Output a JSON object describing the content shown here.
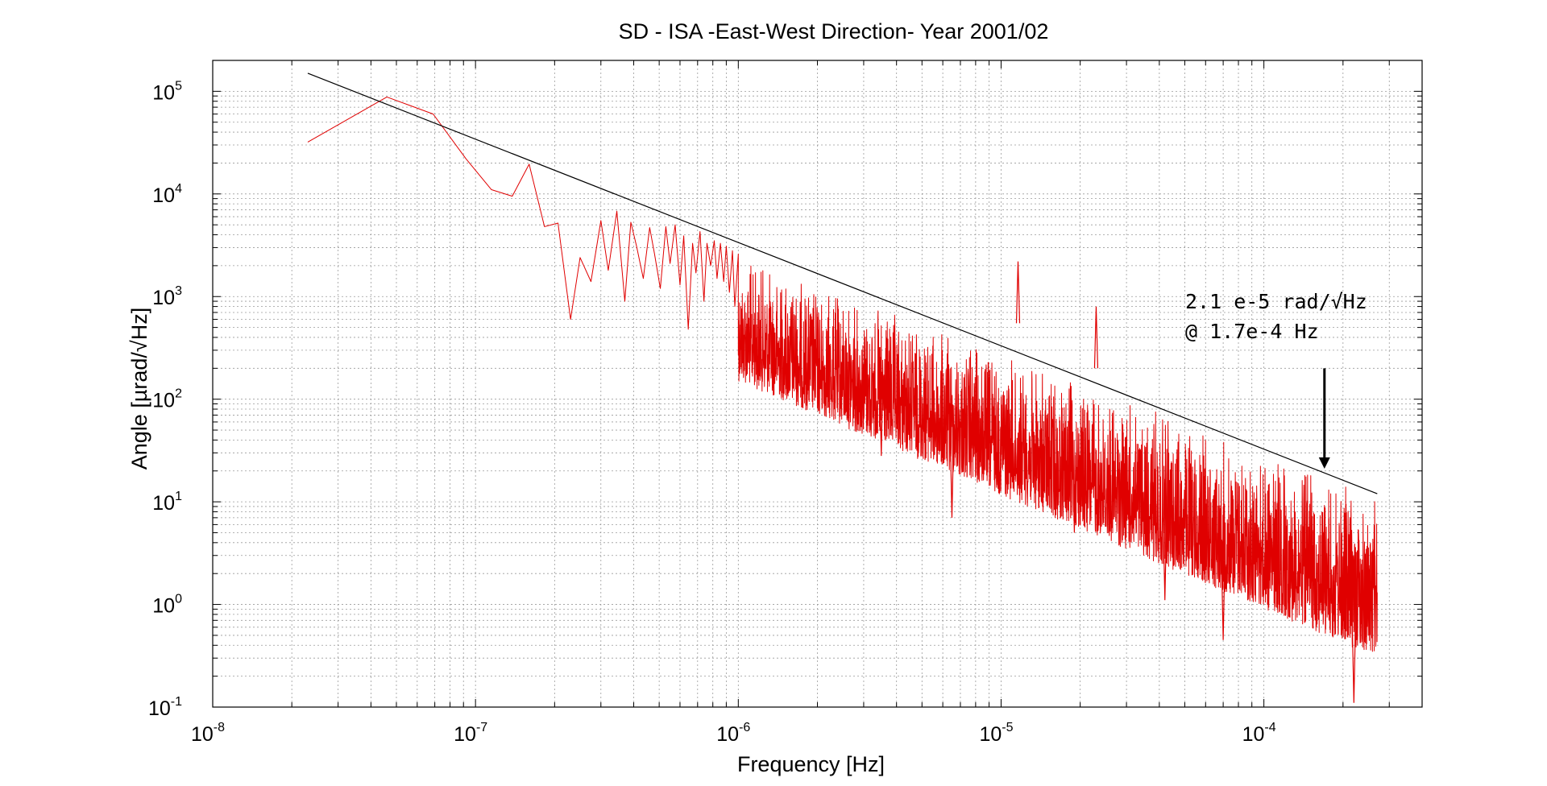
{
  "chart_data": {
    "type": "line",
    "title": "SD - ISA -East-West Direction- Year 2001/02",
    "xlabel": "Frequency [Hz]",
    "ylabel": "Angle [µrad/√Hz]",
    "xscale": "log",
    "yscale": "log",
    "xlim": [
      1e-08,
      0.0004
    ],
    "ylim": [
      0.1,
      200000
    ],
    "grid": true,
    "xticks": [
      {
        "base": "10",
        "exp": "-8",
        "value": 1e-08
      },
      {
        "base": "10",
        "exp": "-7",
        "value": 1e-07
      },
      {
        "base": "10",
        "exp": "-6",
        "value": 1e-06
      },
      {
        "base": "10",
        "exp": "-5",
        "value": 1e-05
      },
      {
        "base": "10",
        "exp": "-4",
        "value": 0.0001
      }
    ],
    "yticks": [
      {
        "base": "10",
        "exp": "-1",
        "value": 0.1
      },
      {
        "base": "10",
        "exp": "0",
        "value": 1
      },
      {
        "base": "10",
        "exp": "1",
        "value": 10
      },
      {
        "base": "10",
        "exp": "2",
        "value": 100
      },
      {
        "base": "10",
        "exp": "3",
        "value": 1000
      },
      {
        "base": "10",
        "exp": "4",
        "value": 10000
      },
      {
        "base": "10",
        "exp": "5",
        "value": 100000
      }
    ],
    "series": [
      {
        "color": "#e00000",
        "low_frequency_points": [
          [
            2.3e-08,
            32000
          ],
          [
            4.6e-08,
            88000
          ],
          [
            6.9e-08,
            60000
          ],
          [
            9.2e-08,
            22000
          ],
          [
            1.15e-07,
            11000
          ],
          [
            1.38e-07,
            9500
          ],
          [
            1.6e-07,
            19500
          ],
          [
            1.83e-07,
            4800
          ],
          [
            2.06e-07,
            5200
          ],
          [
            2.3e-07,
            600
          ],
          [
            2.5e-07,
            2400
          ],
          [
            2.75e-07,
            1400
          ],
          [
            3e-07,
            5500
          ],
          [
            3.2e-07,
            1800
          ],
          [
            3.45e-07,
            6800
          ],
          [
            3.7e-07,
            900
          ],
          [
            3.9e-07,
            5300
          ],
          [
            4.1e-07,
            3100
          ],
          [
            4.35e-07,
            1500
          ],
          [
            4.6e-07,
            4700
          ],
          [
            4.8e-07,
            2600
          ],
          [
            5.05e-07,
            1200
          ],
          [
            5.3e-07,
            4800
          ],
          [
            5.5e-07,
            2100
          ],
          [
            5.75e-07,
            5000
          ],
          [
            6e-07,
            1300
          ],
          [
            6.2e-07,
            3900
          ],
          [
            6.45e-07,
            480
          ],
          [
            6.7e-07,
            3300
          ],
          [
            6.9e-07,
            1700
          ],
          [
            7.15e-07,
            4300
          ],
          [
            7.4e-07,
            900
          ],
          [
            7.6e-07,
            3300
          ],
          [
            7.85e-07,
            2000
          ],
          [
            8.1e-07,
            3500
          ],
          [
            8.3e-07,
            1500
          ],
          [
            8.55e-07,
            3300
          ],
          [
            8.8e-07,
            1400
          ],
          [
            9e-07,
            3100
          ],
          [
            9.25e-07,
            1100
          ],
          [
            9.5e-07,
            2800
          ],
          [
            9.7e-07,
            800
          ],
          [
            1e-06,
            2600
          ]
        ],
        "envelope": {
          "from_frequency": 1e-06,
          "to_frequency": 0.00027,
          "upper_at_from": 2600,
          "upper_at_to": 12,
          "lower_at_from": 150,
          "lower_at_to": 0.3
        },
        "peaks": [
          {
            "x": 1.16e-05,
            "y": 2200
          },
          {
            "x": 2.3e-05,
            "y": 800
          }
        ],
        "dips": [
          {
            "x": 3.5e-06,
            "y": 28
          },
          {
            "x": 6.5e-06,
            "y": 7
          },
          {
            "x": 1.9e-05,
            "y": 5
          },
          {
            "x": 4.2e-05,
            "y": 1.1
          },
          {
            "x": 7e-05,
            "y": 0.45
          },
          {
            "x": 0.00022,
            "y": 0.11
          }
        ]
      },
      {
        "color": "#000000",
        "points": [
          [
            2.3e-08,
            150000
          ],
          [
            0.00027,
            12
          ]
        ]
      }
    ],
    "annotations": [
      {
        "line1": "2.1 e-5 rad/√Hz",
        "line2": "@ 1.7e-4 Hz"
      }
    ],
    "arrow": {
      "x": 0.00017,
      "y_from": 200,
      "y_to": 21
    }
  }
}
